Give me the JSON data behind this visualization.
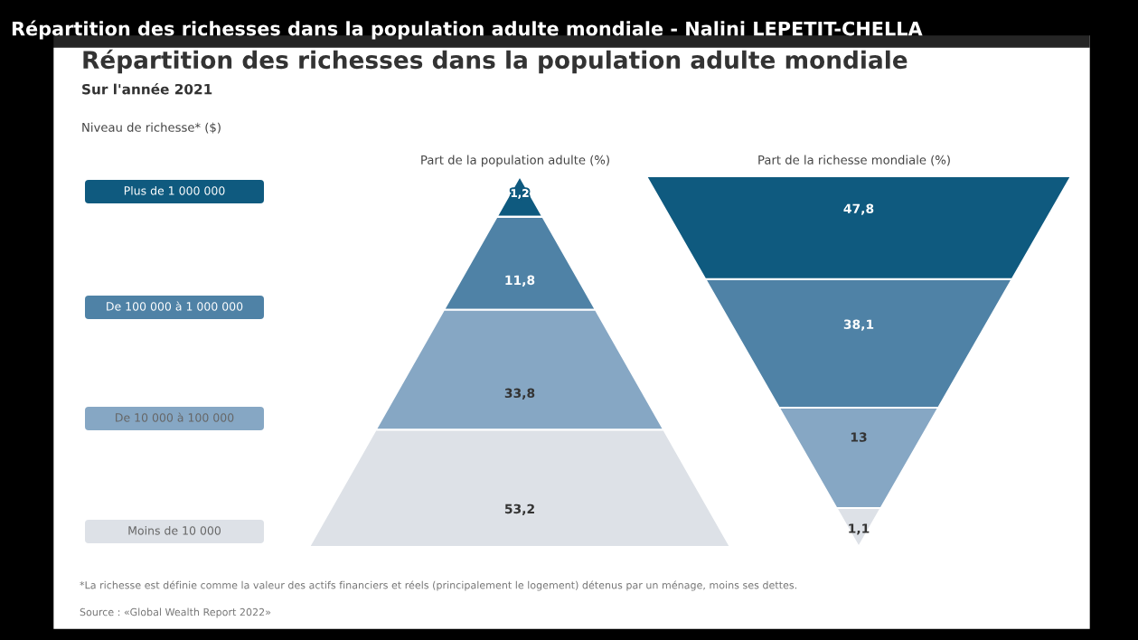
{
  "chart_data": {
    "type": "other",
    "title": "Répartition des richesses dans la population adulte mondiale",
    "subtitle": "Sur l'année 2021",
    "legend_title": "Niveau de richesse* ($)",
    "categories": [
      "Plus de 1 000 000",
      "De 100 000 à 1 000 000",
      "De 10 000 à 100 000",
      "Moins de 10 000"
    ],
    "colors": [
      "#0f5a7f",
      "#4f82a6",
      "#86a7c4",
      "#dde1e7"
    ],
    "series": [
      {
        "name": "Part de la population adulte (%)",
        "colors": [
          "#0f5a7f",
          "#4f82a6",
          "#86a7c4",
          "#dde1e7"
        ],
        "values": [
          1.2,
          11.8,
          33.8,
          53.2
        ],
        "value_labels": [
          "1,2",
          "11,8",
          "33,8",
          "53,2"
        ]
      },
      {
        "name": "Part de la richesse mondiale (%)",
        "colors": [
          "#0f5a7f",
          "#4f82a6",
          "#86a7c4",
          "#dde1e7"
        ],
        "values": [
          47.8,
          38.1,
          13,
          1.1
        ],
        "value_labels": [
          "47,8",
          "38,1",
          "13",
          "1,1"
        ]
      }
    ],
    "annotations": [
      "Répartition des richesses dans la population adulte mondiale - Nalini LEPETIT-CHELLA",
      "*La richesse est définie comme la valeur des actifs financiers et réels (principalement le logement) détenus par un ménage, moins ses dettes.",
      "Source : «Global Wealth Report 2022»"
    ]
  }
}
